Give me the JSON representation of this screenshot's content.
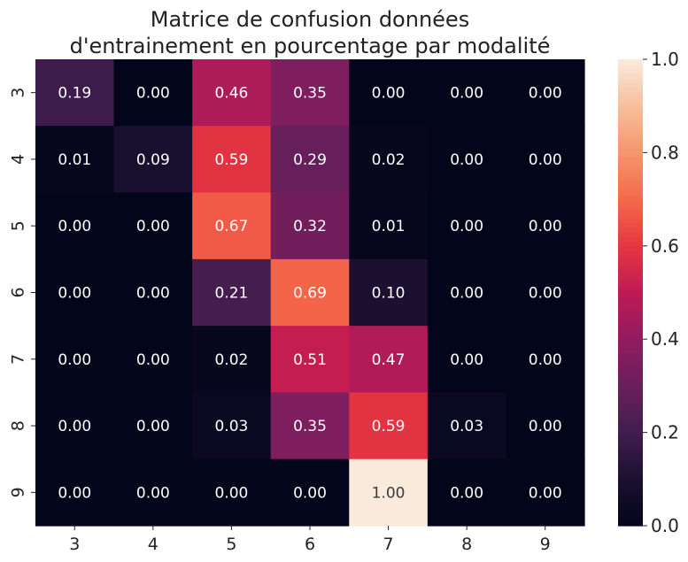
{
  "chart_data": {
    "type": "heatmap",
    "title_lines": [
      "Matrice de confusion données",
      "d'entrainement en pourcentage par modalité"
    ],
    "x_categories": [
      "3",
      "4",
      "5",
      "6",
      "7",
      "8",
      "9"
    ],
    "y_categories": [
      "3",
      "4",
      "5",
      "6",
      "7",
      "8",
      "9"
    ],
    "values": [
      [
        0.19,
        0.0,
        0.46,
        0.35,
        0.0,
        0.0,
        0.0
      ],
      [
        0.01,
        0.09,
        0.59,
        0.29,
        0.02,
        0.0,
        0.0
      ],
      [
        0.0,
        0.0,
        0.67,
        0.32,
        0.01,
        0.0,
        0.0
      ],
      [
        0.0,
        0.0,
        0.21,
        0.69,
        0.1,
        0.0,
        0.0
      ],
      [
        0.0,
        0.0,
        0.02,
        0.51,
        0.47,
        0.0,
        0.0
      ],
      [
        0.0,
        0.0,
        0.03,
        0.35,
        0.59,
        0.03,
        0.0
      ],
      [
        0.0,
        0.0,
        0.0,
        0.0,
        1.0,
        0.0,
        0.0
      ]
    ],
    "value_format_decimals": 2,
    "color_range": [
      0.0,
      1.0
    ],
    "colormap": "rocket",
    "colorbar": {
      "placement": "right",
      "ticks": [
        0.0,
        0.2,
        0.4,
        0.6,
        0.8,
        1.0
      ],
      "tick_labels": [
        "0.0",
        "0.2",
        "0.4",
        "0.6",
        "0.8",
        "1.0"
      ]
    },
    "annotation_colors": {
      "on_dark": "#ffffff",
      "on_light": "#3a3a3a"
    },
    "grid": false
  }
}
